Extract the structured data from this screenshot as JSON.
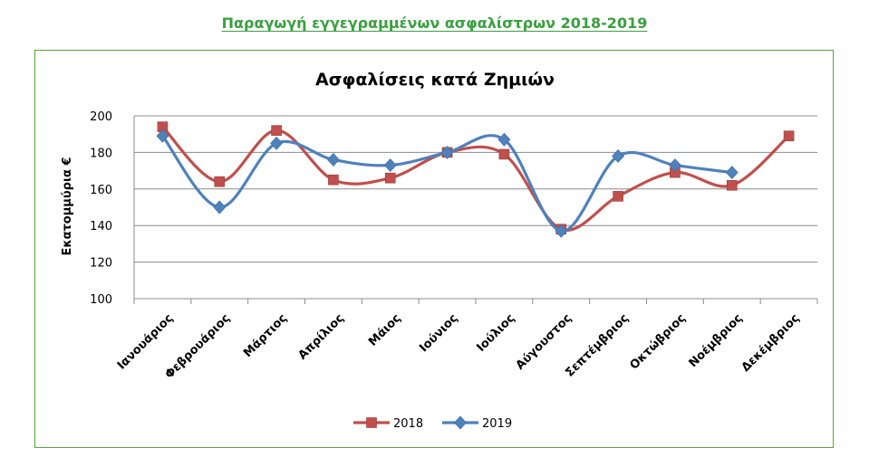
{
  "header": {
    "title": "Παραγωγή εγγεγραμμένων ασφαλίστρων 2018-2019"
  },
  "chart_data": {
    "type": "line",
    "title": "Ασφαλίσεις κατά Ζημιών",
    "xlabel": "",
    "ylabel": "Εκατομμύρια  €",
    "ylim": [
      100,
      200
    ],
    "yticks": [
      100,
      120,
      140,
      160,
      180,
      200
    ],
    "categories": [
      "Ιανουάριος",
      "Φεβρουάριος",
      "Μάρτιος",
      "Απρίλιος",
      "Μάιος",
      "Ιούνιος",
      "Ιούλιος",
      "Αύγουστος",
      "Σεπτέμβριος",
      "Οκτώβριος",
      "Νοέμβριος",
      "Δεκέμβριος"
    ],
    "grid": true,
    "smooth": true,
    "legend": "bottom",
    "series": [
      {
        "name": "2018",
        "color": "#c0504d",
        "marker": "square",
        "values": [
          194,
          164,
          192,
          165,
          166,
          180,
          179,
          138,
          156,
          169,
          162,
          189
        ]
      },
      {
        "name": "2019",
        "color": "#4f81bd",
        "marker": "diamond",
        "values": [
          189,
          150,
          185,
          176,
          173,
          180,
          187,
          137,
          178,
          173,
          169,
          null
        ]
      }
    ]
  }
}
